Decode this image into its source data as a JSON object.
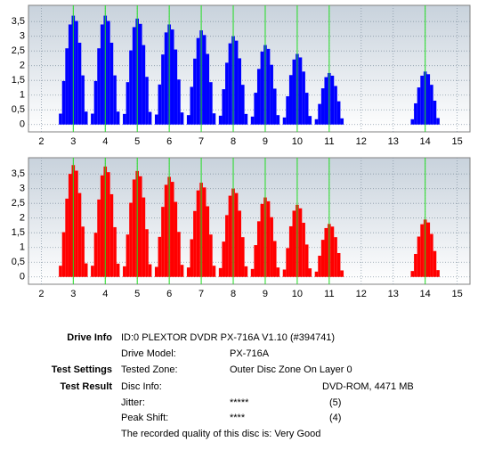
{
  "chart_data": [
    {
      "type": "bar",
      "color": "#0000ff",
      "reference_color": "#22dd22",
      "grid": true,
      "xlim": [
        1.6,
        15.4
      ],
      "ylim": [
        -0.25,
        4.05
      ],
      "xticks": [
        2,
        3,
        4,
        5,
        6,
        7,
        8,
        9,
        10,
        11,
        12,
        13,
        14,
        15
      ],
      "yticks": [
        0,
        {
          "value": 0.5,
          "label": "0,5"
        },
        1,
        {
          "value": 1.5,
          "label": "1,5"
        },
        2,
        {
          "value": 2.5,
          "label": "2,5"
        },
        3,
        {
          "value": 3.5,
          "label": "3,5"
        }
      ],
      "reference_lines": [
        3,
        4,
        5,
        6,
        7,
        8,
        9,
        10,
        11,
        14
      ],
      "x": [
        2.6,
        2.7,
        2.8,
        2.9,
        3,
        3.1,
        3.2,
        3.3,
        3.4,
        3.6,
        3.7,
        3.8,
        3.9,
        4,
        4.1,
        4.2,
        4.3,
        4.4,
        4.6,
        4.7,
        4.8,
        4.9,
        5,
        5.1,
        5.2,
        5.3,
        5.4,
        5.6,
        5.7,
        5.8,
        5.9,
        6,
        6.1,
        6.2,
        6.3,
        6.4,
        6.6,
        6.7,
        6.8,
        6.9,
        7,
        7.1,
        7.2,
        7.3,
        7.4,
        7.6,
        7.7,
        7.8,
        7.9,
        8,
        8.1,
        8.2,
        8.3,
        8.4,
        8.6,
        8.7,
        8.8,
        8.9,
        9,
        9.1,
        9.2,
        9.3,
        9.4,
        9.6,
        9.7,
        9.8,
        9.9,
        10,
        10.1,
        10.2,
        10.3,
        10.4,
        10.6,
        10.7,
        10.8,
        10.9,
        11,
        11.1,
        11.2,
        11.3,
        11.4,
        13.6,
        13.7,
        13.8,
        13.9,
        14,
        14.1,
        14.2,
        14.3,
        14.4
      ],
      "values": [
        0.37,
        1.48,
        2.59,
        3.4,
        3.7,
        3.52,
        2.78,
        1.67,
        0.44,
        0.37,
        1.48,
        2.59,
        3.4,
        3.7,
        3.52,
        2.78,
        1.67,
        0.44,
        0.36,
        1.44,
        2.52,
        3.31,
        3.6,
        3.42,
        2.7,
        1.62,
        0.43,
        0.34,
        1.36,
        2.38,
        3.13,
        3.4,
        3.23,
        2.55,
        1.53,
        0.41,
        0.32,
        1.28,
        2.24,
        2.94,
        3.2,
        3.04,
        2.4,
        1.44,
        0.38,
        0.3,
        1.2,
        2.1,
        2.76,
        3,
        2.85,
        2.25,
        1.35,
        0.36,
        0.27,
        1.08,
        1.89,
        2.48,
        2.7,
        2.57,
        2.03,
        1.22,
        0.32,
        0.24,
        0.96,
        1.68,
        2.21,
        2.4,
        2.28,
        1.8,
        1.08,
        0.29,
        0.18,
        0.7,
        1.23,
        1.61,
        1.75,
        1.66,
        1.31,
        0.79,
        0.21,
        0.18,
        0.72,
        1.26,
        1.66,
        1.8,
        1.71,
        1.35,
        0.81,
        0.22
      ]
    },
    {
      "type": "bar",
      "color": "#ff0000",
      "reference_color": "#22dd22",
      "grid": true,
      "xlim": [
        1.6,
        15.4
      ],
      "ylim": [
        -0.25,
        4.05
      ],
      "xticks": [
        2,
        3,
        4,
        5,
        6,
        7,
        8,
        9,
        10,
        11,
        12,
        13,
        14,
        15
      ],
      "yticks": [
        0,
        {
          "value": 0.5,
          "label": "0,5"
        },
        1,
        {
          "value": 1.5,
          "label": "1,5"
        },
        2,
        {
          "value": 2.5,
          "label": "2,5"
        },
        3,
        {
          "value": 3.5,
          "label": "3,5"
        }
      ],
      "reference_lines": [
        3,
        4,
        5,
        6,
        7,
        8,
        9,
        10,
        11,
        14
      ],
      "x": [
        2.6,
        2.7,
        2.8,
        2.9,
        3,
        3.1,
        3.2,
        3.3,
        3.4,
        3.6,
        3.7,
        3.8,
        3.9,
        4,
        4.1,
        4.2,
        4.3,
        4.4,
        4.6,
        4.7,
        4.8,
        4.9,
        5,
        5.1,
        5.2,
        5.3,
        5.4,
        5.6,
        5.7,
        5.8,
        5.9,
        6,
        6.1,
        6.2,
        6.3,
        6.4,
        6.6,
        6.7,
        6.8,
        6.9,
        7,
        7.1,
        7.2,
        7.3,
        7.4,
        7.6,
        7.7,
        7.8,
        7.9,
        8,
        8.1,
        8.2,
        8.3,
        8.4,
        8.6,
        8.7,
        8.8,
        8.9,
        9,
        9.1,
        9.2,
        9.3,
        9.4,
        9.6,
        9.7,
        9.8,
        9.9,
        10,
        10.1,
        10.2,
        10.3,
        10.4,
        10.6,
        10.7,
        10.8,
        10.9,
        11,
        11.1,
        11.2,
        11.3,
        11.4,
        13.6,
        13.7,
        13.8,
        13.9,
        14,
        14.1,
        14.2,
        14.3,
        14.4
      ],
      "values": [
        0.38,
        1.52,
        2.66,
        3.5,
        3.8,
        3.61,
        2.85,
        1.71,
        0.46,
        0.38,
        1.5,
        2.63,
        3.45,
        3.75,
        3.56,
        2.81,
        1.69,
        0.45,
        0.36,
        1.44,
        2.52,
        3.31,
        3.6,
        3.42,
        2.7,
        1.62,
        0.43,
        0.34,
        1.36,
        2.38,
        3.13,
        3.4,
        3.23,
        2.55,
        1.53,
        0.41,
        0.32,
        1.28,
        2.24,
        2.94,
        3.2,
        3.04,
        2.4,
        1.44,
        0.38,
        0.3,
        1.2,
        2.1,
        2.76,
        3,
        2.85,
        2.25,
        1.35,
        0.36,
        0.27,
        1.08,
        1.89,
        2.48,
        2.7,
        2.57,
        2.03,
        1.22,
        0.32,
        0.25,
        0.98,
        1.72,
        2.25,
        2.45,
        2.33,
        1.84,
        1.1,
        0.29,
        0.18,
        0.72,
        1.26,
        1.66,
        1.8,
        1.71,
        1.35,
        0.81,
        0.22,
        0.2,
        0.78,
        1.37,
        1.79,
        1.95,
        1.85,
        1.46,
        0.88,
        0.23
      ]
    }
  ],
  "info": {
    "drive_info_label": "Drive Info",
    "drive_id": "ID:0 PLEXTOR DVDR PX-716A V1.10 (#394741)",
    "drive_model_label": "Drive Model:",
    "drive_model": "PX-716A",
    "test_settings_label": "Test Settings",
    "tested_zone_label": "Tested Zone:",
    "tested_zone": "Outer Disc Zone On Layer 0",
    "test_result_label": "Test Result",
    "disc_info_label": "Disc Info:",
    "disc_info": "DVD-ROM, 4471 MB",
    "jitter_label": "Jitter:",
    "jitter_stars": "*****",
    "jitter_score": "(5)",
    "peak_shift_label": "Peak Shift:",
    "peak_shift_stars": "****",
    "peak_shift_score": "(4)",
    "quality": "The recorded quality of this disc is: Very Good"
  }
}
